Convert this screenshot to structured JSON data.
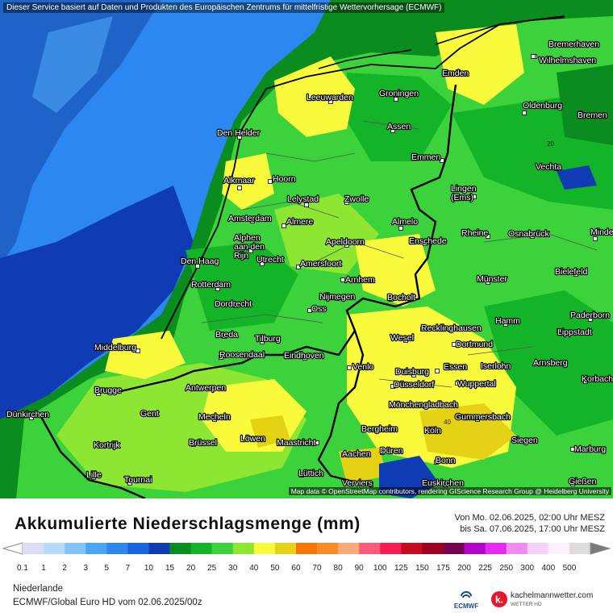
{
  "disclaimer": "Dieser Service basiert auf Daten und Produkten des Europäischen Zentrums für mittelfristige Wettervorhersage (ECMWF)",
  "attribution": "Map data © OpenStreetMap contributors, rendering GIScience Research Group @ Heidelberg University",
  "title": "Akkumulierte Niederschlagsmenge (mm)",
  "period": {
    "from": "Von Mo. 02.06.2025, 02:00 Uhr MESZ",
    "to": "bis Sa. 07.06.2025, 17:00 Uhr MESZ"
  },
  "region": "Niederlande",
  "model": "ECMWF/Global Euro HD vom  02.06.2025/00z",
  "brand": {
    "ecmwf": "ECMWF",
    "site": "kachelmannwetter.com",
    "sub": "WETTER HD"
  },
  "legend": {
    "labels": [
      "0.1",
      "1",
      "2",
      "3",
      "5",
      "7",
      "10",
      "15",
      "20",
      "25",
      "30",
      "40",
      "50",
      "60",
      "70",
      "80",
      "90",
      "100",
      "125",
      "150",
      "175",
      "200",
      "225",
      "250",
      "300",
      "400",
      "500"
    ],
    "colors": [
      "#dcdcf4",
      "#b4dcfa",
      "#82c3fa",
      "#4ba5f5",
      "#2d87f0",
      "#1964e1",
      "#0f3cb4",
      "#0a8c1e",
      "#14b428",
      "#3cd23c",
      "#8ce632",
      "#fafa3c",
      "#e6d214",
      "#fa7800",
      "#fa8c28",
      "#faaa78",
      "#fa5a78",
      "#fa1e50",
      "#c80a1e",
      "#a0001e",
      "#780050",
      "#b400c8",
      "#e628f0",
      "#f08cf0",
      "#f5d2fa",
      "#fff0ff",
      "#dcdcdc"
    ]
  },
  "map": {
    "sea_colors": {
      "deep": "#1e64c8",
      "mid": "#2d87f0",
      "shelf": "#0f3cb4"
    },
    "land_colors": {
      "dark": "#14b428",
      "mid": "#3cd23c",
      "light": "#8ce632",
      "yellow": "#fafa3c",
      "olive": "#e6d214"
    },
    "isoline_labels": [
      "20",
      "40"
    ],
    "cities": [
      {
        "name": "Bremerhaven"
      },
      {
        "name": "Wilhelmshaven"
      },
      {
        "name": "Emden"
      },
      {
        "name": "Oldenburg"
      },
      {
        "name": "Bremen"
      },
      {
        "name": "Leeuwarden"
      },
      {
        "name": "Groningen"
      },
      {
        "name": "Assen"
      },
      {
        "name": "Den Helder"
      },
      {
        "name": "Emmen"
      },
      {
        "name": "Vechta"
      },
      {
        "name": "Alkmaar"
      },
      {
        "name": "Hoorn"
      },
      {
        "name": "Lelystad"
      },
      {
        "name": "Zwolle"
      },
      {
        "name": "Lingen\n(Ems)"
      },
      {
        "name": "Amsterdam"
      },
      {
        "name": "Almere"
      },
      {
        "name": "Almelo"
      },
      {
        "name": "Rheine"
      },
      {
        "name": "Osnabrück"
      },
      {
        "name": "Minden"
      },
      {
        "name": "Alphen\naan den\nRijn"
      },
      {
        "name": "Apeldoorn"
      },
      {
        "name": "Enschede"
      },
      {
        "name": "Den Haag"
      },
      {
        "name": "Utrecht"
      },
      {
        "name": "Amersfoort"
      },
      {
        "name": "Bielefeld"
      },
      {
        "name": "Rotterdam"
      },
      {
        "name": "Arnhem"
      },
      {
        "name": "Münster"
      },
      {
        "name": "Dordrecht"
      },
      {
        "name": "Nijmegen"
      },
      {
        "name": "Bocholt"
      },
      {
        "name": "Oss"
      },
      {
        "name": "Paderborn"
      },
      {
        "name": "Hamm"
      },
      {
        "name": "Lippstadt"
      },
      {
        "name": "Breda"
      },
      {
        "name": "Tilburg"
      },
      {
        "name": "Recklinghausen"
      },
      {
        "name": "Middelburg"
      },
      {
        "name": "Wesel"
      },
      {
        "name": "Roosendaal"
      },
      {
        "name": "Dortmund"
      },
      {
        "name": "Eindhoven"
      },
      {
        "name": "Arnsberg"
      },
      {
        "name": "Venlo"
      },
      {
        "name": "Essen"
      },
      {
        "name": "Iserlohn"
      },
      {
        "name": "Duisburg"
      },
      {
        "name": "Korbach"
      },
      {
        "name": "Antwerpen"
      },
      {
        "name": "Wuppertal"
      },
      {
        "name": "Brugge"
      },
      {
        "name": "Düsseldorf"
      },
      {
        "name": "Mönchengladbach"
      },
      {
        "name": "Dünkirchen"
      },
      {
        "name": "Gent"
      },
      {
        "name": "Mecheln"
      },
      {
        "name": "Gummersbach"
      },
      {
        "name": "Bergheim"
      },
      {
        "name": "Köln"
      },
      {
        "name": "Kortrijk"
      },
      {
        "name": "Brüssel"
      },
      {
        "name": "Löwen"
      },
      {
        "name": "Maastricht"
      },
      {
        "name": "Siegen"
      },
      {
        "name": "Aachen"
      },
      {
        "name": "Düren"
      },
      {
        "name": "Marburg"
      },
      {
        "name": "Bonn"
      },
      {
        "name": "Lille"
      },
      {
        "name": "Tournai"
      },
      {
        "name": "Lüttich"
      },
      {
        "name": "Gießen"
      },
      {
        "name": "Euskirchen"
      },
      {
        "name": "Verviers"
      }
    ]
  }
}
